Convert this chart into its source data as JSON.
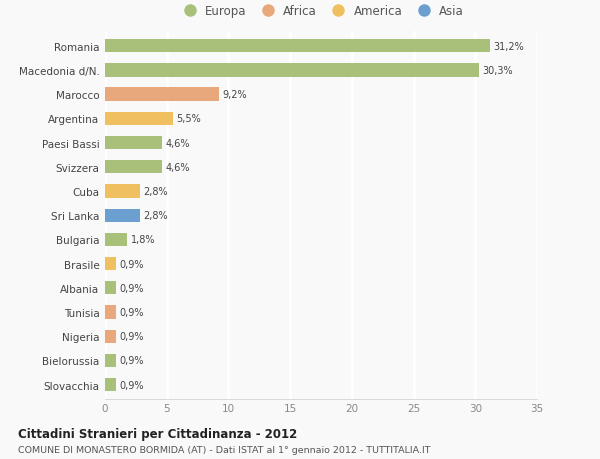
{
  "categories": [
    "Romania",
    "Macedonia d/N.",
    "Marocco",
    "Argentina",
    "Paesi Bassi",
    "Svizzera",
    "Cuba",
    "Sri Lanka",
    "Bulgaria",
    "Brasile",
    "Albania",
    "Tunisia",
    "Nigeria",
    "Bielorussia",
    "Slovacchia"
  ],
  "values": [
    31.2,
    30.3,
    9.2,
    5.5,
    4.6,
    4.6,
    2.8,
    2.8,
    1.8,
    0.9,
    0.9,
    0.9,
    0.9,
    0.9,
    0.9
  ],
  "labels": [
    "31,2%",
    "30,3%",
    "9,2%",
    "5,5%",
    "4,6%",
    "4,6%",
    "2,8%",
    "2,8%",
    "1,8%",
    "0,9%",
    "0,9%",
    "0,9%",
    "0,9%",
    "0,9%",
    "0,9%"
  ],
  "colors": [
    "#a8c07a",
    "#a8c07a",
    "#e8a87c",
    "#f0c060",
    "#a8c07a",
    "#a8c07a",
    "#f0c060",
    "#6b9fcf",
    "#a8c07a",
    "#f0c060",
    "#a8c07a",
    "#e8a87c",
    "#e8a87c",
    "#a8c07a",
    "#a8c07a"
  ],
  "legend_labels": [
    "Europa",
    "Africa",
    "America",
    "Asia"
  ],
  "legend_colors": [
    "#a8c07a",
    "#e8a87c",
    "#f0c060",
    "#6b9fcf"
  ],
  "xlim": [
    0,
    35
  ],
  "xticks": [
    0,
    5,
    10,
    15,
    20,
    25,
    30,
    35
  ],
  "title": "Cittadini Stranieri per Cittadinanza - 2012",
  "subtitle": "COMUNE DI MONASTERO BORMIDA (AT) - Dati ISTAT al 1° gennaio 2012 - TUTTITALIA.IT",
  "background_color": "#f9f9f9",
  "grid_color": "#ffffff",
  "bar_height": 0.55
}
